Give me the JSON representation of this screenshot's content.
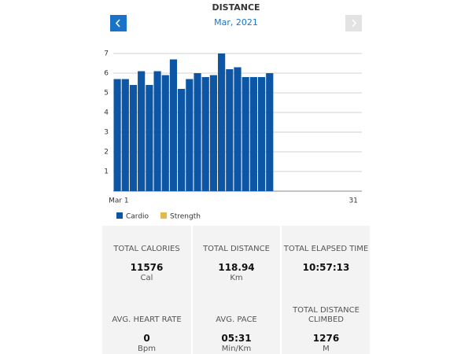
{
  "header": {
    "title": "DISTANCE",
    "period": "Mar, 2021"
  },
  "chart_data": {
    "type": "bar",
    "x": [
      1,
      2,
      3,
      4,
      5,
      6,
      7,
      8,
      9,
      10,
      11,
      12,
      13,
      14,
      15,
      16,
      17,
      18,
      19,
      20
    ],
    "series": [
      {
        "name": "Cardio",
        "color": "#0d56a6",
        "values": [
          5.7,
          5.7,
          5.4,
          6.1,
          5.4,
          6.1,
          5.9,
          6.7,
          5.2,
          5.7,
          6.0,
          5.8,
          5.9,
          7.0,
          6.2,
          6.3,
          5.8,
          5.8,
          5.8,
          6.0
        ]
      },
      {
        "name": "Strength",
        "color": "#e8b84a",
        "values": [
          0,
          0,
          0,
          0,
          0,
          0,
          0,
          0,
          0,
          0,
          0,
          0,
          0,
          0,
          0,
          0,
          0,
          0,
          0,
          0
        ]
      }
    ],
    "xlim": [
      0.5,
      31.5
    ],
    "xticks": [
      {
        "value": 1,
        "label": "Mar 1"
      },
      31
    ],
    "ylim": [
      0,
      7
    ],
    "yticks": [
      1,
      2,
      3,
      4,
      5,
      6,
      7
    ],
    "grid": true,
    "stacked": true
  },
  "stats": [
    {
      "label": "TOTAL CALORIES",
      "value": "11576",
      "unit": "Cal"
    },
    {
      "label": "TOTAL DISTANCE",
      "value": "118.94",
      "unit": "Km"
    },
    {
      "label": "TOTAL ELAPSED TIME",
      "value": "10:57:13"
    },
    {
      "label": "AVG. HEART RATE",
      "value": "0",
      "unit": "Bpm"
    },
    {
      "label": "AVG. PACE",
      "value": "05:31",
      "unit": "Min/Km"
    },
    {
      "label": "TOTAL DISTANCE CLIMBED",
      "value": "1276",
      "unit": "M"
    }
  ]
}
